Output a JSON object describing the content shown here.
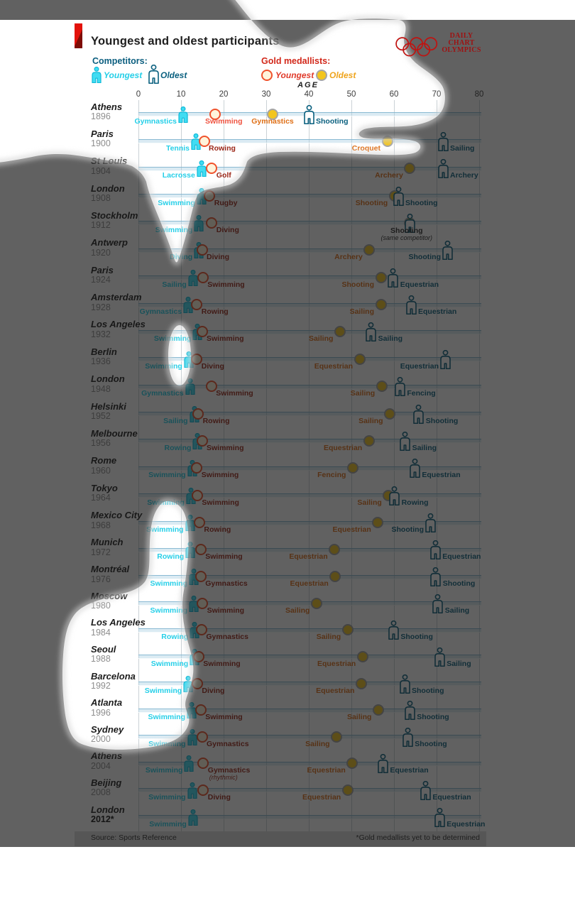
{
  "title": "Youngest and oldest participants",
  "brand": {
    "line1": "DAILY",
    "line2": "CHART",
    "line3": "OLYMPICS"
  },
  "legend": {
    "competitors_label": "Competitors:",
    "competitor_youngest": "Youngest",
    "competitor_oldest": "Oldest",
    "gold_label": "Gold medallists:",
    "gold_youngest": "Youngest",
    "gold_oldest": "Oldest"
  },
  "axis": {
    "label": "AGE",
    "ticks": [
      "0",
      "10",
      "20",
      "30",
      "40",
      "50",
      "60",
      "70",
      "80"
    ],
    "min": 0,
    "max": 80
  },
  "footer": {
    "source": "Source: Sports Reference",
    "note": "*Gold medallists yet to be determined"
  },
  "colors": {
    "youngest_competitor": "#41dcf2",
    "oldest_competitor": "#0a607f",
    "youngest_gold_ring": "#f0522c",
    "oldest_gold_fill": "#f3c51d",
    "economist_red": "#e3120b"
  },
  "chart_data": {
    "type": "scatter",
    "xlabel": "AGE",
    "x_range": [
      0,
      80
    ],
    "series_legend": [
      "Youngest competitor",
      "Oldest competitor",
      "Youngest gold medallist",
      "Oldest gold medallist"
    ],
    "rows": [
      {
        "city": "Athens",
        "year": "1896",
        "yc": {
          "age": 10.5,
          "sport": "Gymnastics"
        },
        "yg": {
          "age": 18,
          "sport": "Swimming",
          "dx": -14,
          "color": "#ef5340"
        },
        "og": {
          "age": 31.5,
          "sport": "Gymnastics",
          "side": "center"
        },
        "oc": {
          "age": 40,
          "sport": "Shooting"
        }
      },
      {
        "city": "Paris",
        "year": "1900",
        "yc": {
          "age": 13.5,
          "sport": "Tennis"
        },
        "yg": {
          "age": 15.5,
          "sport": "Rowing"
        },
        "og": {
          "age": 58.5,
          "sport": "Croquet"
        },
        "oc": {
          "age": 71.5,
          "sport": "Sailing"
        }
      },
      {
        "city": "St Louis",
        "year": "1904",
        "yc": {
          "age": 14.8,
          "sport": "Lacrosse"
        },
        "yg": {
          "age": 17.3,
          "sport": "Golf"
        },
        "og": {
          "age": 63.8,
          "sport": "Archery"
        },
        "oc": {
          "age": 71.5,
          "sport": "Archery"
        }
      },
      {
        "city": "London",
        "year": "1908",
        "yc": {
          "age": 14.8,
          "sport": "Swimming"
        },
        "yg": {
          "age": 16.8,
          "sport": "Rugby"
        },
        "og": {
          "age": 60.2,
          "sport": "Shooting"
        },
        "oc": {
          "age": 61,
          "sport": "Shooting"
        }
      },
      {
        "city": "Stockholm",
        "year": "1912",
        "yc": {
          "age": 14.2,
          "sport": "Swimming"
        },
        "yg": {
          "age": 17.3,
          "sport": "Diving"
        },
        "og": {
          "age": 63.8,
          "sport": "Shooting"
        },
        "oc": {
          "age": 63.8,
          "sport": "Shooting"
        },
        "same_competitor": "(same competitor)"
      },
      {
        "city": "Antwerp",
        "year": "1920",
        "yc": {
          "age": 14.2,
          "sport": "Diving"
        },
        "yg": {
          "age": 15,
          "sport": "Diving"
        },
        "og": {
          "age": 54.3,
          "sport": "Archery"
        },
        "oc": {
          "age": 72.5,
          "sport": "Shooting",
          "side": "left"
        }
      },
      {
        "city": "Paris",
        "year": "1924",
        "yc": {
          "age": 12.8,
          "sport": "Sailing"
        },
        "yg": {
          "age": 15.2,
          "sport": "Swimming"
        },
        "og": {
          "age": 57,
          "sport": "Shooting"
        },
        "oc": {
          "age": 59.8,
          "sport": "Equestrian"
        }
      },
      {
        "city": "Amsterdam",
        "year": "1928",
        "yc": {
          "age": 11.7,
          "sport": "Gymnastics"
        },
        "yg": {
          "age": 13.8,
          "sport": "Rowing"
        },
        "og": {
          "age": 57,
          "sport": "Sailing"
        },
        "oc": {
          "age": 64,
          "sport": "Equestrian"
        }
      },
      {
        "city": "Los Angeles",
        "year": "1932",
        "yc": {
          "age": 13.9,
          "sport": "Swimming"
        },
        "yg": {
          "age": 15,
          "sport": "Swimming"
        },
        "og": {
          "age": 47.4,
          "sport": "Sailing"
        },
        "oc": {
          "age": 54.6,
          "sport": "Sailing"
        }
      },
      {
        "city": "Berlin",
        "year": "1936",
        "yc": {
          "age": 11.8,
          "sport": "Swimming"
        },
        "yg": {
          "age": 13.8,
          "sport": "Diving"
        },
        "og": {
          "age": 52,
          "sport": "Equestrian"
        },
        "oc": {
          "age": 72,
          "sport": "Equestrian",
          "side": "left"
        }
      },
      {
        "city": "London",
        "year": "1948",
        "yc": {
          "age": 12.1,
          "sport": "Gymnastics"
        },
        "yg": {
          "age": 17.2,
          "sport": "Swimming"
        },
        "og": {
          "age": 57.2,
          "sport": "Sailing"
        },
        "oc": {
          "age": 61.4,
          "sport": "Fencing"
        }
      },
      {
        "city": "Helsinki",
        "year": "1952",
        "yc": {
          "age": 13.1,
          "sport": "Sailing"
        },
        "yg": {
          "age": 14.1,
          "sport": "Rowing"
        },
        "og": {
          "age": 59.1,
          "sport": "Sailing"
        },
        "oc": {
          "age": 65.8,
          "sport": "Shooting"
        }
      },
      {
        "city": "Melbourne",
        "year": "1956",
        "yc": {
          "age": 13.9,
          "sport": "Rowing"
        },
        "yg": {
          "age": 15,
          "sport": "Swimming"
        },
        "og": {
          "age": 54.2,
          "sport": "Equestrian"
        },
        "oc": {
          "age": 62.6,
          "sport": "Sailing"
        }
      },
      {
        "city": "Rome",
        "year": "1960",
        "yc": {
          "age": 12.6,
          "sport": "Swimming"
        },
        "yg": {
          "age": 13.8,
          "sport": "Swimming"
        },
        "og": {
          "age": 50.4,
          "sport": "Fencing"
        },
        "oc": {
          "age": 64.9,
          "sport": "Equestrian"
        }
      },
      {
        "city": "Tokyo",
        "year": "1964",
        "yc": {
          "age": 12.3,
          "sport": "Swimming"
        },
        "yg": {
          "age": 13.9,
          "sport": "Swimming"
        },
        "og": {
          "age": 58.8,
          "sport": "Sailing"
        },
        "oc": {
          "age": 60.1,
          "sport": "Rowing"
        }
      },
      {
        "city": "Mexico City",
        "year": "1968",
        "yc": {
          "age": 12.1,
          "sport": "Swimming"
        },
        "yg": {
          "age": 14.4,
          "sport": "Rowing"
        },
        "og": {
          "age": 56.3,
          "sport": "Equestrian"
        },
        "oc": {
          "age": 68.5,
          "sport": "Shooting",
          "side": "left"
        }
      },
      {
        "city": "Munich",
        "year": "1972",
        "yc": {
          "age": 12.2,
          "sport": "Rowing"
        },
        "yg": {
          "age": 14.7,
          "sport": "Swimming"
        },
        "og": {
          "age": 46.1,
          "sport": "Equestrian"
        },
        "oc": {
          "age": 69.7,
          "sport": "Equestrian"
        }
      },
      {
        "city": "Montréal",
        "year": "1976",
        "yc": {
          "age": 13,
          "sport": "Swimming"
        },
        "yg": {
          "age": 14.7,
          "sport": "Gymnastics"
        },
        "og": {
          "age": 46.3,
          "sport": "Equestrian"
        },
        "oc": {
          "age": 69.8,
          "sport": "Shooting"
        }
      },
      {
        "city": "Moscow",
        "year": "1980",
        "yc": {
          "age": 13,
          "sport": "Swimming"
        },
        "yg": {
          "age": 15.1,
          "sport": "Swimming"
        },
        "og": {
          "age": 41.9,
          "sport": "Sailing"
        },
        "oc": {
          "age": 70.3,
          "sport": "Sailing"
        }
      },
      {
        "city": "Los Angeles",
        "year": "1984",
        "yc": {
          "age": 13.2,
          "sport": "Rowing"
        },
        "yg": {
          "age": 14.9,
          "sport": "Gymnastics"
        },
        "og": {
          "age": 49.2,
          "sport": "Sailing"
        },
        "oc": {
          "age": 59.9,
          "sport": "Shooting"
        }
      },
      {
        "city": "Seoul",
        "year": "1988",
        "yc": {
          "age": 13.2,
          "sport": "Swimming"
        },
        "yg": {
          "age": 14.2,
          "sport": "Swimming"
        },
        "og": {
          "age": 52.7,
          "sport": "Equestrian"
        },
        "oc": {
          "age": 70.7,
          "sport": "Sailing"
        }
      },
      {
        "city": "Barcelona",
        "year": "1992",
        "yc": {
          "age": 11.7,
          "sport": "Swimming"
        },
        "yg": {
          "age": 13.9,
          "sport": "Diving"
        },
        "og": {
          "age": 52.4,
          "sport": "Equestrian"
        },
        "oc": {
          "age": 62.5,
          "sport": "Shooting"
        }
      },
      {
        "city": "Atlanta",
        "year": "1996",
        "yc": {
          "age": 12.5,
          "sport": "Swimming"
        },
        "yg": {
          "age": 14.7,
          "sport": "Swimming"
        },
        "og": {
          "age": 56.4,
          "sport": "Sailing"
        },
        "oc": {
          "age": 63.7,
          "sport": "Shooting"
        }
      },
      {
        "city": "Sydney",
        "year": "2000",
        "yc": {
          "age": 12.6,
          "sport": "Swimming"
        },
        "yg": {
          "age": 15,
          "sport": "Gymnastics"
        },
        "og": {
          "age": 46.6,
          "sport": "Sailing"
        },
        "oc": {
          "age": 63.2,
          "sport": "Shooting"
        }
      },
      {
        "city": "Athens",
        "year": "2004",
        "yc": {
          "age": 11.9,
          "sport": "Swimming"
        },
        "yg": {
          "age": 15.3,
          "sport": "Gymnastics",
          "note": "(rhythmic)"
        },
        "og": {
          "age": 50.3,
          "sport": "Equestrian"
        },
        "oc": {
          "age": 57.4,
          "sport": "Equestrian"
        }
      },
      {
        "city": "Beijing",
        "year": "2008",
        "yc": {
          "age": 12.6,
          "sport": "Swimming"
        },
        "yg": {
          "age": 15.3,
          "sport": "Diving"
        },
        "og": {
          "age": 49.2,
          "sport": "Equestrian"
        },
        "oc": {
          "age": 67.4,
          "sport": "Equestrian"
        }
      },
      {
        "city": "London",
        "year": "2012*",
        "year_bold": true,
        "yc": {
          "age": 12.8,
          "sport": "Swimming"
        },
        "oc": {
          "age": 70.7,
          "sport": "Equestrian"
        }
      }
    ]
  }
}
